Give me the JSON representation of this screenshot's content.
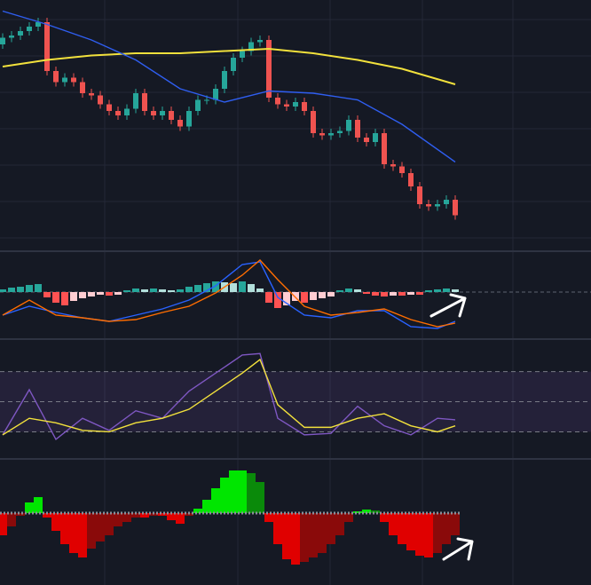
{
  "chart_data": [
    {
      "type": "candlestick",
      "open": [
        88,
        91,
        92,
        94,
        96,
        98,
        76,
        71,
        73,
        71,
        66,
        65,
        61,
        58,
        56,
        59,
        66,
        58,
        56,
        58,
        54,
        51,
        58,
        63,
        63,
        68,
        76,
        82,
        85,
        89,
        90,
        64,
        61,
        60,
        62,
        58,
        48,
        47,
        48,
        49,
        54,
        46,
        44,
        48,
        34,
        33,
        30,
        24,
        16,
        15,
        16,
        18
      ],
      "high": [
        93,
        94,
        96,
        98,
        100,
        100,
        78,
        75,
        75,
        73,
        68,
        67,
        63,
        60,
        61,
        68,
        68,
        60,
        60,
        60,
        56,
        60,
        65,
        65,
        70,
        78,
        84,
        87,
        91,
        92,
        92,
        66,
        63,
        64,
        64,
        60,
        50,
        50,
        51,
        56,
        56,
        48,
        50,
        50,
        36,
        35,
        32,
        26,
        18,
        18,
        20,
        20
      ],
      "low": [
        86,
        89,
        90,
        92,
        94,
        74,
        69,
        69,
        69,
        64,
        63,
        59,
        56,
        54,
        54,
        57,
        56,
        54,
        54,
        52,
        49,
        49,
        56,
        61,
        61,
        66,
        74,
        80,
        83,
        87,
        62,
        59,
        58,
        58,
        56,
        46,
        45,
        45,
        46,
        47,
        44,
        42,
        42,
        32,
        31,
        28,
        22,
        14,
        13,
        13,
        14,
        9
      ],
      "close": [
        91,
        92,
        94,
        96,
        98,
        76,
        71,
        73,
        71,
        66,
        65,
        61,
        58,
        56,
        59,
        66,
        58,
        56,
        58,
        54,
        51,
        58,
        63,
        63,
        68,
        76,
        82,
        85,
        89,
        90,
        64,
        61,
        60,
        62,
        58,
        48,
        47,
        48,
        49,
        54,
        46,
        44,
        48,
        34,
        33,
        30,
        24,
        16,
        15,
        16,
        18,
        11
      ],
      "up_color": "#26a69a",
      "down_color": "#ef5350",
      "ylim": [
        0,
        108
      ],
      "series": [
        {
          "x": [
            0,
            5,
            10,
            15,
            20,
            25,
            30,
            35,
            40,
            45,
            51
          ],
          "color": "#f2e13c",
          "values": [
            78,
            81,
            83,
            84,
            84,
            85,
            86,
            84,
            81,
            77,
            70
          ]
        },
        {
          "x": [
            0,
            5,
            10,
            15,
            20,
            25,
            30,
            35,
            40,
            45,
            51
          ],
          "color": "#2f5ef0",
          "values": [
            103,
            97,
            90,
            81,
            68,
            62,
            67,
            66,
            63,
            52,
            35
          ]
        }
      ]
    },
    {
      "type": "macd",
      "ylim": [
        -51,
        46
      ],
      "histogram": [
        3,
        5,
        6,
        8,
        9,
        -6,
        -12,
        -15,
        -10,
        -7,
        -5,
        -3,
        -4,
        -3,
        2,
        4,
        3,
        4,
        3,
        2,
        3,
        6,
        8,
        10,
        12,
        11,
        10,
        12,
        9,
        4,
        -12,
        -18,
        -15,
        -10,
        -12,
        -9,
        -7,
        -5,
        2,
        4,
        3,
        -2,
        -4,
        -5,
        -4,
        -4,
        -3,
        -3,
        2,
        3,
        4,
        3
      ],
      "histogram_colors": {
        "pos_rising": "#26a69a",
        "pos_falling": "#b2dfdb",
        "neg_falling": "#ff5252",
        "neg_rising": "#ffcdd2"
      },
      "series": [
        {
          "x": [
            0,
            3,
            6,
            9,
            12,
            15,
            18,
            21,
            24,
            27,
            29,
            31,
            34,
            37,
            40,
            43,
            46,
            49,
            51
          ],
          "color": "#2962ff",
          "values": [
            -26,
            -16,
            -23,
            -29,
            -33,
            -26,
            -19,
            -9,
            7,
            31,
            34,
            -6,
            -26,
            -29,
            -21,
            -21,
            -39,
            -41,
            -33
          ]
        },
        {
          "x": [
            0,
            3,
            6,
            9,
            12,
            15,
            18,
            21,
            24,
            27,
            29,
            31,
            34,
            37,
            40,
            43,
            46,
            49,
            51
          ],
          "color": "#ff6d00",
          "values": [
            -26,
            -9,
            -26,
            -29,
            -33,
            -31,
            -23,
            -16,
            -1,
            19,
            36,
            14,
            -16,
            -26,
            -23,
            -19,
            -31,
            -39,
            -35
          ]
        }
      ]
    },
    {
      "type": "rsi",
      "ylim": [
        12,
        91
      ],
      "levels": [
        30,
        50,
        70
      ],
      "band_color": "rgba(126,87,194,0.14)",
      "series": [
        {
          "x": [
            0,
            3,
            6,
            9,
            12,
            15,
            18,
            21,
            24,
            27,
            29,
            31,
            34,
            37,
            40,
            43,
            46,
            49,
            51
          ],
          "color": "#7e57c2",
          "values": [
            28,
            58,
            25,
            39,
            31,
            44,
            39,
            57,
            69,
            81,
            82,
            39,
            28,
            29,
            47,
            34,
            28,
            39,
            38
          ]
        },
        {
          "x": [
            0,
            3,
            6,
            9,
            12,
            15,
            18,
            21,
            24,
            27,
            29,
            31,
            34,
            37,
            40,
            43,
            46,
            49,
            51
          ],
          "color": "#f2e13c",
          "values": [
            28,
            39,
            36,
            31,
            30,
            36,
            39,
            45,
            57,
            69,
            78,
            48,
            33,
            33,
            39,
            42,
            34,
            30,
            34
          ]
        }
      ]
    },
    {
      "type": "histogram",
      "ylim": [
        -81,
        61
      ],
      "values": [
        -25,
        -15,
        -3,
        12,
        18,
        -5,
        -20,
        -35,
        -45,
        -50,
        -40,
        -32,
        -25,
        -15,
        -10,
        -5,
        -5,
        -3,
        -3,
        -8,
        -12,
        -3,
        5,
        15,
        28,
        40,
        48,
        48,
        45,
        35,
        -10,
        -35,
        -52,
        -58,
        -55,
        -50,
        -45,
        -35,
        -25,
        -10,
        2,
        4,
        3,
        -10,
        -25,
        -35,
        -42,
        -48,
        -50,
        -45,
        -35,
        -25
      ],
      "colors": {
        "pos_rising": "#00e600",
        "pos_falling": "#0a8a0a",
        "neg_falling": "#e00000",
        "neg_rising": "#8a0a0a"
      }
    }
  ]
}
